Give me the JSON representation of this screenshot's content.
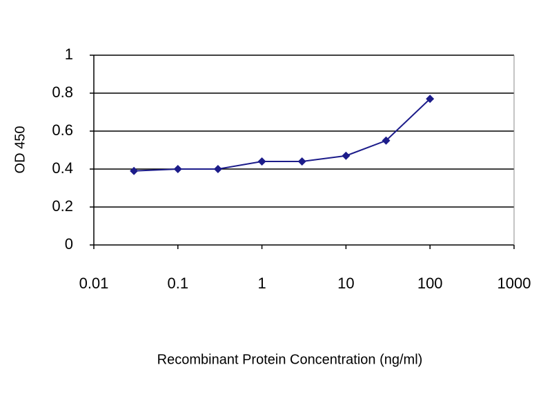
{
  "chart_data": {
    "type": "line",
    "x_label": "Recombinant Protein Concentration (ng/ml)",
    "y_label": "OD 450",
    "x_scale": "log",
    "grid": true,
    "series": [
      {
        "color": "#1c1c8a",
        "x": [
          0.03,
          0.1,
          0.3,
          1,
          3,
          10,
          30,
          100
        ],
        "values": [
          0.39,
          0.4,
          0.4,
          0.44,
          0.44,
          0.47,
          0.55,
          0.77
        ]
      }
    ],
    "xlim": [
      0.01,
      1000
    ],
    "xticks": [
      0.01,
      0.1,
      1,
      10,
      100,
      1000
    ],
    "ylim": [
      0,
      1
    ],
    "yticks": [
      0,
      0.2,
      0.4,
      0.6,
      0.8,
      1
    ]
  }
}
